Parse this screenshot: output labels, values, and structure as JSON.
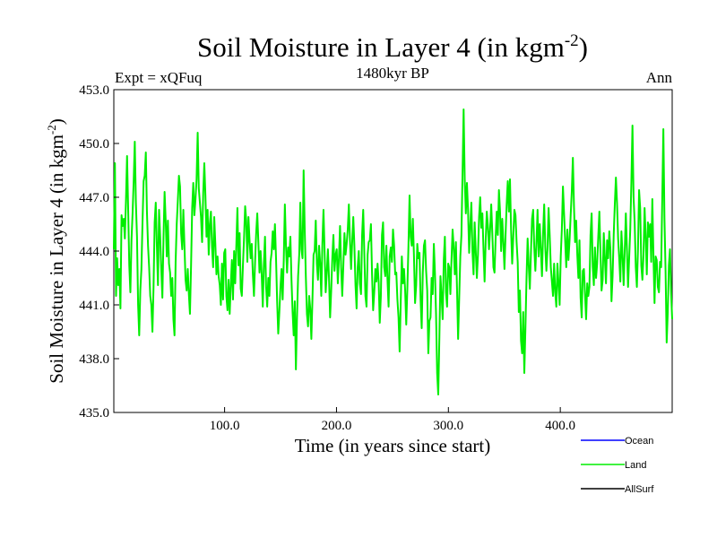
{
  "chart_data": {
    "type": "line",
    "title": "Soil Moisture in Layer 4 (in kgm",
    "title_sup": "-2",
    "title_close": ")",
    "subtitle_left": "Expt = xQFuq",
    "subtitle_center": "1480kyr BP",
    "subtitle_right": "Ann",
    "xlabel": "Time (in years since start)",
    "ylabel": "Soil Moisture in Layer 4 (in kgm",
    "ylabel_sup": "-2",
    "ylabel_close": ")",
    "xlim": [
      1,
      500
    ],
    "ylim": [
      435.0,
      453.0
    ],
    "xticks": [
      100,
      200,
      300,
      400
    ],
    "xtick_labels": [
      "100.0",
      "200.0",
      "300.0",
      "400.0"
    ],
    "yticks": [
      435,
      438,
      441,
      444,
      447,
      450,
      453
    ],
    "ytick_labels": [
      "435.0",
      "438.0",
      "441.0",
      "444.0",
      "447.0",
      "450.0",
      "453.0"
    ],
    "grid": false,
    "legend_position": "bottom-right",
    "series": [
      {
        "name": "Ocean",
        "color": "#0000ff",
        "values": []
      },
      {
        "name": "Land",
        "color": "#00ee00",
        "values": [
          444.1,
          448.9,
          441.5,
          443.6,
          442.1,
          443.0,
          440.8,
          446.0,
          445.4,
          445.8,
          444.7,
          446.8,
          449.3,
          446.3,
          443.2,
          441.7,
          444.6,
          446.1,
          447.9,
          450.1,
          446.7,
          444.8,
          441.0,
          439.3,
          441.8,
          443.0,
          445.6,
          447.9,
          448.2,
          449.5,
          446.2,
          444.3,
          443.1,
          441.5,
          441.0,
          439.5,
          442.0,
          445.6,
          446.7,
          444.3,
          442.1,
          446.3,
          444.8,
          443.0,
          441.4,
          444.7,
          447.3,
          445.7,
          443.7,
          445.7,
          443.3,
          442.8,
          441.5,
          442.5,
          440.2,
          439.3,
          443.4,
          445.5,
          446.8,
          448.2,
          447.6,
          445.0,
          444.1,
          446.3,
          444.3,
          442.4,
          441.8,
          443.0,
          441.6,
          440.5,
          443.2,
          446.4,
          447.8,
          446.0,
          446.9,
          448.0,
          450.6,
          447.5,
          446.7,
          445.9,
          444.5,
          447.2,
          448.9,
          447.1,
          444.8,
          446.3,
          443.8,
          445.5,
          446.2,
          444.2,
          443.1,
          445.9,
          444.4,
          442.7,
          443.7,
          442.6,
          442.1,
          441.0,
          443.3,
          441.3,
          443.9,
          444.1,
          441.5,
          440.7,
          442.4,
          440.5,
          442.1,
          443.5,
          441.3,
          444.0,
          442.2,
          444.3,
          446.4,
          443.2,
          445.0,
          441.9,
          441.5,
          443.2,
          444.7,
          446.5,
          445.7,
          443.4,
          445.9,
          444.6,
          443.6,
          444.4,
          442.7,
          441.5,
          443.4,
          445.0,
          446.1,
          444.5,
          442.8,
          444.0,
          442.7,
          440.9,
          443.3,
          444.8,
          442.0,
          440.9,
          442.5,
          441.5,
          443.4,
          443.9,
          445.1,
          444.1,
          445.5,
          443.6,
          441.2,
          439.4,
          440.6,
          442.0,
          443.0,
          441.3,
          443.5,
          446.6,
          444.3,
          442.8,
          444.2,
          443.7,
          444.8,
          442.4,
          440.6,
          439.3,
          441.2,
          437.4,
          440.3,
          442.6,
          443.8,
          446.7,
          444.1,
          443.6,
          448.5,
          445.2,
          442.6,
          440.5,
          439.8,
          441.5,
          440.8,
          439.1,
          441.3,
          443.8,
          444.0,
          445.7,
          443.3,
          442.4,
          444.3,
          443.3,
          441.5,
          444.4,
          446.3,
          444.0,
          441.7,
          442.8,
          444.1,
          442.5,
          440.3,
          441.8,
          443.6,
          444.9,
          442.9,
          443.8,
          444.1,
          442.2,
          443.6,
          445.4,
          443.1,
          441.5,
          443.2,
          445.0,
          443.8,
          444.4,
          445.2,
          446.6,
          444.6,
          443.0,
          444.5,
          445.9,
          444.3,
          442.1,
          440.8,
          443.1,
          444.0,
          442.2,
          441.6,
          444.9,
          446.3,
          443.9,
          441.5,
          440.9,
          443.8,
          444.5,
          444.6,
          445.5,
          442.7,
          440.7,
          441.7,
          443.0,
          442.3,
          443.3,
          442.3,
          440.0,
          441.5,
          444.9,
          445.6,
          443.1,
          442.6,
          444.3,
          442.4,
          440.9,
          443.7,
          444.2,
          443.4,
          445.2,
          444.3,
          442.7,
          442.8,
          441.3,
          440.3,
          438.4,
          441.2,
          443.7,
          442.2,
          443.0,
          441.8,
          439.9,
          441.9,
          444.3,
          447.1,
          444.8,
          444.3,
          445.8,
          443.7,
          441.1,
          442.1,
          444.4,
          443.6,
          443.9,
          441.3,
          439.7,
          442.8,
          444.3,
          444.6,
          442.9,
          441.8,
          438.3,
          440.1,
          440.3,
          442.5,
          441.6,
          444.4,
          442.8,
          440.5,
          437.2,
          436.0,
          439.1,
          442.6,
          441.5,
          440.2,
          443.5,
          444.8,
          441.7,
          440.9,
          443.3,
          443.1,
          441.6,
          443.5,
          445.2,
          444.2,
          442.7,
          444.5,
          441.9,
          439.1,
          441.4,
          443.7,
          444.9,
          448.3,
          451.9,
          448.0,
          446.1,
          447.8,
          446.3,
          443.9,
          445.4,
          446.7,
          444.0,
          442.7,
          445.6,
          444.0,
          442.5,
          443.8,
          445.9,
          447.0,
          445.3,
          446.1,
          444.1,
          442.3,
          444.6,
          446.2,
          445.4,
          444.1,
          445.2,
          446.6,
          445.0,
          443.1,
          442.8,
          444.7,
          446.2,
          444.9,
          447.4,
          446.2,
          444.0,
          445.8,
          444.5,
          443.0,
          444.9,
          446.6,
          447.9,
          446.2,
          448.0,
          445.2,
          443.3,
          444.8,
          446.3,
          446.0,
          444.5,
          443.4,
          440.6,
          441.8,
          439.0,
          438.3,
          440.6,
          437.2,
          439.7,
          442.5,
          444.7,
          443.2,
          441.9,
          443.9,
          445.8,
          446.3,
          444.2,
          442.9,
          444.5,
          446.3,
          443.7,
          445.5,
          444.1,
          442.6,
          445.0,
          446.6,
          444.2,
          442.9,
          444.1,
          446.4,
          444.9,
          443.1,
          442.3,
          441.5,
          443.3,
          441.7,
          440.9,
          443.3,
          442.2,
          441.0,
          443.7,
          445.2,
          447.6,
          446.1,
          444.6,
          443.1,
          445.2,
          443.5,
          444.6,
          446.0,
          447.3,
          449.2,
          446.5,
          444.5,
          445.7,
          443.8,
          442.5,
          444.6,
          441.4,
          440.3,
          442.9,
          443.0,
          441.6,
          440.2,
          442.2,
          441.5,
          442.0,
          444.9,
          446.1,
          443.1,
          442.1,
          444.2,
          442.5,
          443.3,
          444.8,
          446.2,
          443.9,
          441.8,
          442.4,
          445.0,
          443.6,
          442.2,
          444.6,
          443.6,
          445.1,
          444.1,
          441.2,
          442.6,
          444.9,
          446.6,
          448.1,
          446.7,
          444.7,
          443.6,
          442.3,
          445.1,
          443.8,
          442.1,
          444.0,
          446.1,
          444.1,
          442.0,
          443.6,
          445.2,
          447.8,
          451.0,
          447.0,
          445.6,
          443.1,
          442.0,
          444.1,
          447.4,
          446.4,
          443.2,
          442.4,
          443.8,
          446.4,
          444.8,
          442.7,
          445.6,
          444.8,
          445.5,
          443.4,
          446.9,
          443.8,
          441.1,
          443.7,
          443.5,
          442.0,
          441.7,
          443.4,
          443.1,
          446.9,
          450.8,
          445.8,
          442.9,
          438.9,
          440.6,
          443.2,
          444.1,
          441.7,
          440.2
        ]
      },
      {
        "name": "AllSurf",
        "color": "#000000",
        "values": []
      }
    ]
  }
}
